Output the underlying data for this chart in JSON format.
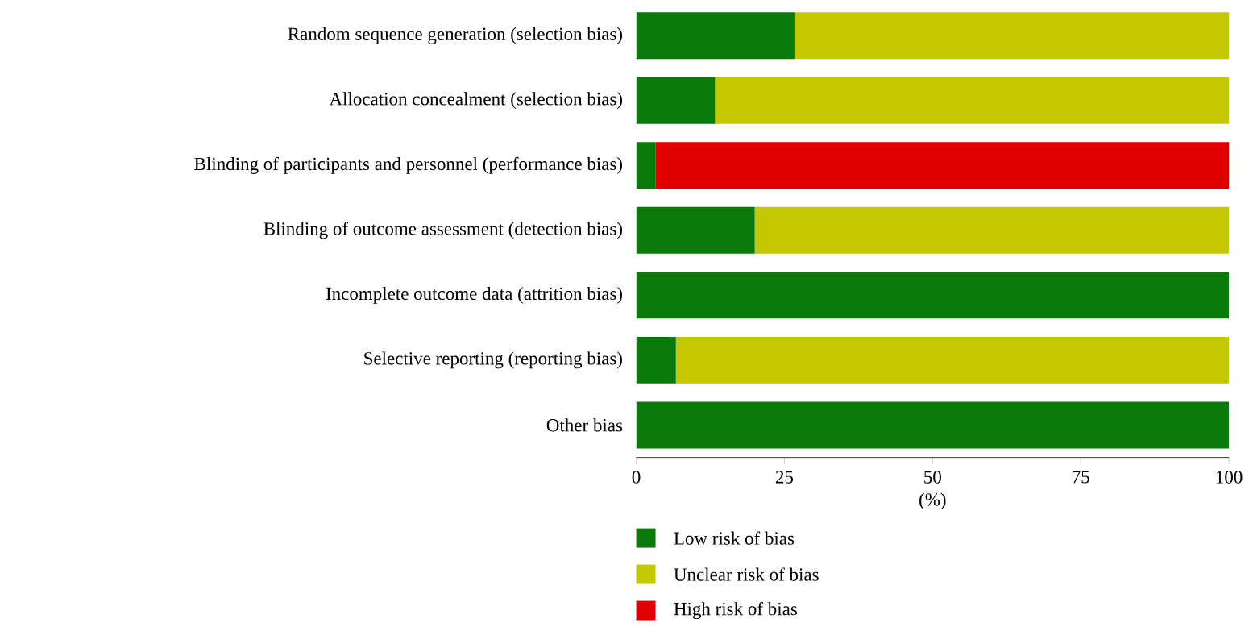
{
  "chart_data": {
    "type": "bar",
    "orientation": "horizontal",
    "stacked": true,
    "xlabel": "(%)",
    "categories": [
      "Random sequence generation (selection bias)",
      "Allocation concealment (selection bias)",
      "Blinding of participants and personnel (performance bias)",
      "Blinding of outcome assessment (detection bias)",
      "Incomplete outcome data (attrition bias)",
      "Selective reporting (reporting bias)",
      "Other bias"
    ],
    "series": [
      {
        "name": "Low risk of bias",
        "color": "#0a7a0a",
        "values": [
          26.7,
          13.3,
          3.3,
          20,
          100,
          6.7,
          100
        ]
      },
      {
        "name": "Unclear risk of bias",
        "color": "#c4c800",
        "values": [
          73.3,
          86.7,
          0,
          80,
          0,
          93.3,
          0
        ]
      },
      {
        "name": "High risk of bias",
        "color": "#e00000",
        "values": [
          0,
          0,
          96.7,
          0,
          0,
          0,
          0
        ]
      }
    ],
    "xlim": [
      0,
      100
    ],
    "xticks": [
      0,
      25,
      50,
      75,
      100
    ],
    "legend": "bottom",
    "grid": false
  }
}
